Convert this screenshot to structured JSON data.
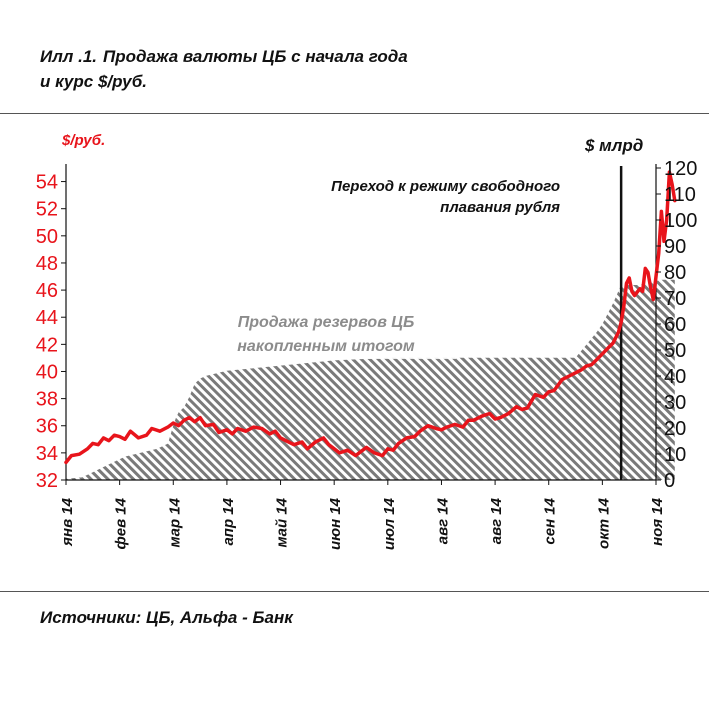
{
  "title": {
    "number": "Илл .1.",
    "line1": "Продажа валюты ЦБ с начала года",
    "line2": "и курс $/руб."
  },
  "source": "Источники: ЦБ, Альфа - Банк",
  "chart_data": {
    "type": "line",
    "left_axis_label": "$/руб.",
    "right_axis_label": "$ млрд",
    "left_ylim": [
      32,
      55
    ],
    "left_ticks": [
      32,
      34,
      36,
      38,
      40,
      42,
      44,
      46,
      48,
      50,
      52,
      54
    ],
    "right_ylim": [
      0,
      120
    ],
    "right_ticks": [
      0,
      10,
      20,
      30,
      40,
      50,
      60,
      70,
      80,
      90,
      100,
      110,
      120
    ],
    "x_range": [
      0,
      11
    ],
    "x_tick_labels": [
      "янв 14",
      "фев 14",
      "мар 14",
      "апр 14",
      "май 14",
      "июн 14",
      "июл 14",
      "авг 14",
      "авг 14",
      "сен 14",
      "окт 14",
      "ноя 14"
    ],
    "event_line_x": 10.35,
    "annotation_event": [
      "Переход к режиму свободного",
      "плавания рубля"
    ],
    "annotation_reserves": [
      "Продажа резервов ЦБ",
      "накопленным итогом"
    ],
    "series": [
      {
        "name": "Курс $/руб.",
        "axis": "left",
        "color": "#e8141b",
        "x": [
          0,
          0.1,
          0.25,
          0.4,
          0.5,
          0.6,
          0.7,
          0.8,
          0.9,
          1.0,
          1.1,
          1.2,
          1.35,
          1.5,
          1.6,
          1.75,
          1.9,
          2.0,
          2.1,
          2.2,
          2.3,
          2.4,
          2.5,
          2.6,
          2.75,
          2.85,
          3.0,
          3.1,
          3.2,
          3.35,
          3.5,
          3.65,
          3.8,
          3.9,
          4.0,
          4.1,
          4.25,
          4.4,
          4.5,
          4.65,
          4.8,
          4.9,
          5.0,
          5.1,
          5.25,
          5.4,
          5.5,
          5.6,
          5.75,
          5.9,
          6.0,
          6.1,
          6.2,
          6.35,
          6.5,
          6.6,
          6.75,
          6.9,
          7.0,
          7.1,
          7.25,
          7.4,
          7.5,
          7.6,
          7.75,
          7.9,
          8.0,
          8.1,
          8.25,
          8.4,
          8.5,
          8.6,
          8.75,
          8.9,
          9.0,
          9.1,
          9.25,
          9.4,
          9.5,
          9.6,
          9.7,
          9.8,
          9.9,
          10.0,
          10.1,
          10.2,
          10.3,
          10.35,
          10.4,
          10.45,
          10.5,
          10.55,
          10.6,
          10.7,
          10.75,
          10.8,
          10.85,
          10.9,
          10.95,
          11.0,
          11.05,
          11.1,
          11.15,
          11.2,
          11.25,
          11.3,
          11.35
        ],
        "values": [
          33.3,
          33.8,
          33.9,
          34.3,
          34.7,
          34.6,
          35.1,
          34.9,
          35.3,
          35.2,
          35.0,
          35.6,
          35.1,
          35.3,
          35.8,
          35.6,
          35.9,
          36.2,
          36.0,
          36.4,
          36.6,
          36.3,
          36.6,
          36.0,
          36.1,
          35.5,
          35.7,
          35.4,
          35.8,
          35.6,
          35.9,
          35.8,
          35.4,
          35.6,
          35.1,
          34.9,
          34.6,
          34.8,
          34.3,
          34.8,
          35.1,
          34.6,
          34.3,
          34.0,
          34.2,
          33.8,
          34.1,
          34.4,
          34.0,
          33.8,
          34.3,
          34.2,
          34.7,
          35.1,
          35.2,
          35.6,
          36.0,
          35.8,
          35.7,
          35.9,
          36.1,
          35.9,
          36.4,
          36.4,
          36.7,
          36.9,
          36.5,
          36.6,
          36.9,
          37.4,
          37.2,
          37.3,
          38.3,
          38.1,
          38.5,
          38.6,
          39.4,
          39.7,
          39.9,
          40.1,
          40.4,
          40.5,
          40.9,
          41.3,
          41.7,
          42.1,
          42.9,
          43.6,
          44.8,
          46.5,
          46.9,
          45.9,
          45.6,
          46.1,
          45.9,
          47.6,
          47.3,
          46.2,
          45.3,
          47.0,
          48.7,
          51.8,
          49.6,
          51.2,
          54.7,
          53.8,
          52.6
        ]
      },
      {
        "name": "Продажа резервов ЦБ накопленным итогом",
        "axis": "right",
        "x": [
          0,
          0.3,
          0.5,
          0.7,
          0.9,
          1.1,
          1.3,
          1.5,
          1.7,
          1.9,
          2.0,
          2.05,
          2.1,
          2.15,
          2.2,
          2.3,
          2.4,
          2.5,
          2.6,
          2.8,
          3.0,
          3.5,
          4.0,
          4.5,
          5.0,
          5.5,
          6.0,
          6.5,
          7.0,
          7.5,
          8.0,
          8.5,
          9.0,
          9.5,
          9.7,
          9.9,
          10.0,
          10.2,
          10.35,
          10.5,
          10.7,
          10.9,
          11.1,
          11.35
        ],
        "values": [
          0.5,
          1,
          3,
          5,
          7,
          9,
          10,
          11,
          12,
          14,
          21,
          24,
          26,
          27,
          28,
          32,
          37,
          39,
          40,
          41,
          42,
          43,
          44,
          45,
          46,
          46.5,
          47,
          47,
          47,
          47,
          47,
          47,
          47,
          47,
          52,
          57,
          60,
          68,
          75,
          75,
          75,
          76,
          77,
          77
        ]
      }
    ]
  }
}
